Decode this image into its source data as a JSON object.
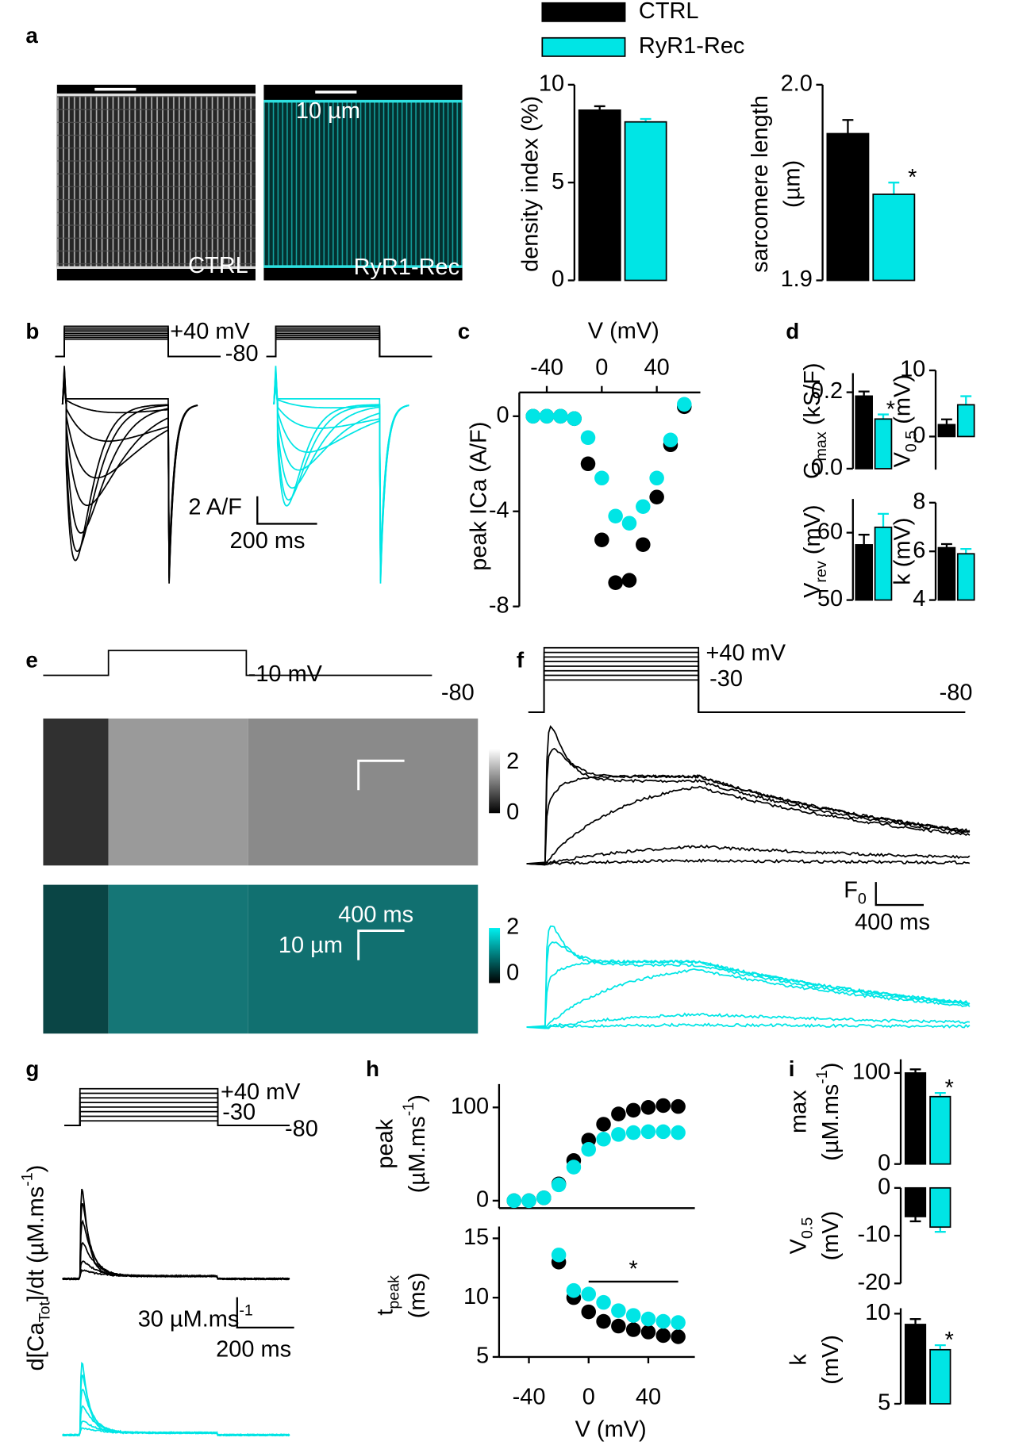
{
  "chart_data": [
    {
      "type": "bar",
      "panel": "a",
      "ylabel": [
        [
          {
            "text": "density index (%)"
          }
        ]
      ],
      "ylim": [
        0,
        10
      ],
      "yticks": [
        0,
        5,
        10
      ],
      "series": [
        {
          "name": "CTRL",
          "color": "#000000",
          "values": [
            8.7
          ],
          "errors": [
            0.2
          ]
        },
        {
          "name": "RyR1-Rec",
          "color": "#00e5e5",
          "values": [
            8.1
          ],
          "errors": [
            0.15
          ]
        }
      ]
    },
    {
      "type": "bar",
      "ylabel": [
        [
          {
            "text": "sarcomere length"
          }
        ],
        [
          {
            "text": "(µm)"
          }
        ]
      ],
      "ylim": [
        1.9,
        2.0
      ],
      "yticks": [
        1.9,
        {
          "value": 2,
          "label": "2.0"
        }
      ],
      "series": [
        {
          "color": "#000000",
          "values": [
            1.975
          ],
          "errors": [
            0.007
          ]
        },
        {
          "color": "#00e5e5",
          "values": [
            1.944
          ],
          "errors": [
            0.006
          ],
          "annotation": "*"
        }
      ]
    },
    {
      "type": "image",
      "labels": [
        "CTRL",
        "RyR1-Rec",
        "10 µm"
      ]
    },
    {
      "type": "traces",
      "panel": "b",
      "labels": [
        "+40 mV",
        "-80",
        "2 A/F",
        "200 ms"
      ]
    },
    {
      "type": "scatter",
      "panel": "c",
      "xaxis": "top",
      "xlabel": [
        [
          {
            "text": "V (mV)"
          }
        ]
      ],
      "ylabel": [
        [
          {
            "text": "peak ICa (A/F)"
          }
        ]
      ],
      "x": [
        -50,
        -40,
        -30,
        -20,
        -10,
        0,
        10,
        20,
        30,
        40,
        50,
        60
      ],
      "xlim": [
        -60,
        65
      ],
      "xticks": [
        -40,
        0,
        40
      ],
      "ylim": [
        -8,
        1
      ],
      "yticks": [
        0,
        -4,
        -8
      ],
      "series": [
        {
          "color": "#000000",
          "values": [
            0,
            0,
            0,
            -0.1,
            -2.0,
            -5.2,
            -7.0,
            -6.9,
            -5.4,
            -3.4,
            -1.2,
            0.4
          ]
        },
        {
          "color": "#00e5e5",
          "values": [
            0,
            0,
            0,
            -0.1,
            -0.9,
            -2.6,
            -4.2,
            -4.5,
            -3.8,
            -2.6,
            -1.0,
            0.5
          ]
        }
      ]
    },
    {
      "type": "bar",
      "panel": "d",
      "ylabel": [
        [
          {
            "text": "G"
          },
          {
            "sub": "max"
          },
          {
            "text": " (kS/F)"
          }
        ]
      ],
      "ylim": [
        0,
        0.25
      ],
      "yticks": [
        {
          "value": 0,
          "label": "0.0"
        },
        0.2
      ],
      "series": [
        {
          "color": "#000000",
          "values": [
            0.19
          ],
          "errors": [
            0.012
          ]
        },
        {
          "color": "#00e5e5",
          "values": [
            0.13
          ],
          "errors": [
            0.012
          ],
          "annotation": "*"
        }
      ]
    },
    {
      "type": "bar",
      "ylabel": [
        [
          {
            "text": "V"
          },
          {
            "sub": "0.5"
          },
          {
            "text": " (mV)"
          }
        ]
      ],
      "ylim": [
        -5,
        10
      ],
      "yticks": [
        0,
        10
      ],
      "series": [
        {
          "color": "#000000",
          "values": [
            1.8
          ],
          "errors": [
            0.8
          ]
        },
        {
          "color": "#00e5e5",
          "values": [
            4.8
          ],
          "errors": [
            1.3
          ]
        }
      ]
    },
    {
      "type": "bar",
      "ylabel": [
        [
          {
            "text": "V"
          },
          {
            "sub": "rev"
          },
          {
            "text": " (mV)"
          }
        ]
      ],
      "ylim": [
        50,
        65
      ],
      "yticks": [
        50,
        60
      ],
      "series": [
        {
          "color": "#000000",
          "values": [
            58.2
          ],
          "errors": [
            1.5
          ]
        },
        {
          "color": "#00e5e5",
          "values": [
            60.8
          ],
          "errors": [
            2.0
          ]
        }
      ]
    },
    {
      "type": "bar",
      "ylabel": [
        [
          {
            "text": "k (mV)"
          }
        ]
      ],
      "ylim": [
        4,
        8
      ],
      "yticks": [
        4,
        6,
        8
      ],
      "series": [
        {
          "color": "#000000",
          "values": [
            6.15
          ],
          "errors": [
            0.15
          ]
        },
        {
          "color": "#00e5e5",
          "values": [
            5.9
          ],
          "errors": [
            0.2
          ]
        }
      ]
    },
    {
      "type": "image",
      "panel": "e",
      "labels": [
        "-10 mV",
        "-80",
        "2",
        "0",
        "2",
        "0",
        "400 ms",
        "10 µm"
      ]
    },
    {
      "type": "traces",
      "panel": "f",
      "labels": [
        "+40 mV",
        "-30",
        "-80",
        "400 ms"
      ],
      "scale_label": [
        {
          "text": "F"
        },
        {
          "sub": "0"
        }
      ]
    },
    {
      "type": "traces",
      "panel": "g",
      "labels": [
        "+40 mV",
        "-30",
        "-80",
        "200 ms"
      ],
      "ylabel": [
        [
          {
            "text": "d[Ca"
          },
          {
            "sub": "Tot"
          },
          {
            "text": "]/dt (µM.ms"
          },
          {
            "sup": "-1"
          },
          {
            "text": ")"
          }
        ]
      ],
      "scale_label": [
        {
          "text": "30 µM.ms"
        },
        {
          "sup": "-1"
        }
      ]
    },
    {
      "type": "scatter",
      "panel": "h",
      "ylabel": [
        [
          {
            "text": "peak"
          }
        ],
        [
          {
            "text": "(µM.ms"
          },
          {
            "sup": "-1"
          },
          {
            "text": ")"
          }
        ]
      ],
      "x": [
        -50,
        -40,
        -30,
        -20,
        -10,
        0,
        10,
        20,
        30,
        40,
        50,
        60
      ],
      "xlim": [
        -60,
        65
      ],
      "ylim": [
        -8,
        125
      ],
      "yticks": [
        0,
        100
      ],
      "series": [
        {
          "color": "#000000",
          "values": [
            0,
            0,
            3,
            18,
            43,
            65,
            82,
            93,
            97,
            100,
            102,
            101
          ]
        },
        {
          "color": "#00e5e5",
          "values": [
            0,
            0,
            3,
            17,
            36,
            55,
            66,
            71,
            73,
            74,
            74,
            73
          ]
        }
      ]
    },
    {
      "type": "scatter",
      "xlabel": [
        [
          {
            "text": "V (mV)"
          }
        ]
      ],
      "ylabel": [
        [
          {
            "text": "t"
          },
          {
            "sub": "peak"
          }
        ],
        [
          {
            "text": "(ms)"
          }
        ]
      ],
      "x": [
        -20,
        -10,
        0,
        10,
        20,
        30,
        40,
        50,
        60
      ],
      "xlim": [
        -60,
        65
      ],
      "xticks": [
        -40,
        0,
        40
      ],
      "ylim": [
        5,
        16
      ],
      "yticks": [
        5,
        10,
        15
      ],
      "annotations": [
        {
          "text": "*",
          "x": [
            0,
            60
          ]
        }
      ],
      "series": [
        {
          "color": "#000000",
          "values": [
            13.0,
            10.0,
            8.8,
            8.0,
            7.6,
            7.3,
            7.1,
            6.8,
            6.7
          ]
        },
        {
          "color": "#00e5e5",
          "values": [
            13.6,
            10.6,
            10.3,
            9.6,
            8.9,
            8.5,
            8.2,
            8.0,
            7.9
          ]
        }
      ]
    },
    {
      "type": "bar",
      "panel": "i",
      "ylabel": [
        [
          {
            "text": "max"
          }
        ],
        [
          {
            "text": "(µM.ms"
          },
          {
            "sup": "-1"
          },
          {
            "text": ")"
          }
        ]
      ],
      "ylim": [
        0,
        115
      ],
      "yticks": [
        0,
        100
      ],
      "series": [
        {
          "color": "#000000",
          "values": [
            100
          ],
          "errors": [
            4
          ]
        },
        {
          "color": "#00e5e5",
          "values": [
            74
          ],
          "errors": [
            4
          ],
          "annotation": "*"
        }
      ]
    },
    {
      "type": "bar",
      "ylabel": [
        [
          {
            "text": "V"
          },
          {
            "sub": "0.5"
          }
        ],
        [
          {
            "text": "(mV)"
          }
        ]
      ],
      "ylim": [
        -20,
        0
      ],
      "yticks": [
        0,
        -10,
        -20
      ],
      "series": [
        {
          "color": "#000000",
          "values": [
            -6.0
          ],
          "errors": [
            1.0
          ]
        },
        {
          "color": "#00e5e5",
          "values": [
            -8.2
          ],
          "errors": [
            1.0
          ]
        }
      ]
    },
    {
      "type": "bar",
      "ylabel": [
        [
          {
            "text": "k"
          }
        ],
        [
          {
            "text": "(mV)"
          }
        ]
      ],
      "ylim": [
        5,
        10.3
      ],
      "yticks": [
        5,
        10
      ],
      "series": [
        {
          "color": "#000000",
          "values": [
            9.4
          ],
          "errors": [
            0.3
          ]
        },
        {
          "color": "#00e5e5",
          "values": [
            8.0
          ],
          "errors": [
            0.25
          ],
          "annotation": "*"
        }
      ]
    }
  ]
}
